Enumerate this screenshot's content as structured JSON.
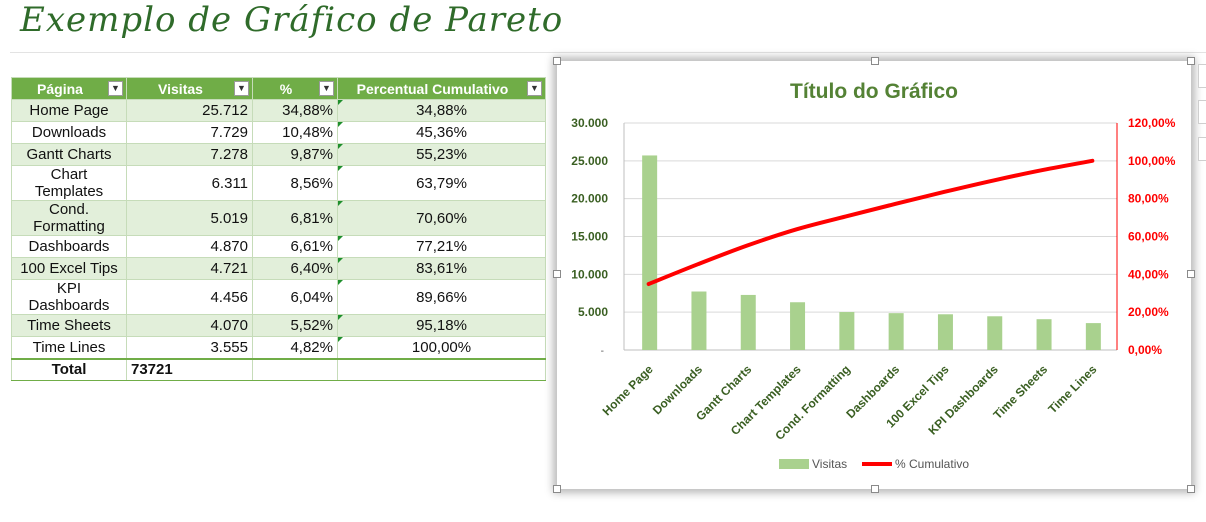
{
  "sheet": {
    "title": "Exemplo de Gráfico de Pareto"
  },
  "table": {
    "headers": [
      "Página",
      "Visitas",
      "%",
      "Percentual Cumulativo"
    ],
    "rows": [
      {
        "page": "Home Page",
        "visits": "25.712",
        "pct": "34,88%",
        "cum": "34,88%"
      },
      {
        "page": "Downloads",
        "visits": "7.729",
        "pct": "10,48%",
        "cum": "45,36%"
      },
      {
        "page": "Gantt Charts",
        "visits": "7.278",
        "pct": "9,87%",
        "cum": "55,23%"
      },
      {
        "page": "Chart Templates",
        "visits": "6.311",
        "pct": "8,56%",
        "cum": "63,79%"
      },
      {
        "page": "Cond. Formatting",
        "visits": "5.019",
        "pct": "6,81%",
        "cum": "70,60%"
      },
      {
        "page": "Dashboards",
        "visits": "4.870",
        "pct": "6,61%",
        "cum": "77,21%"
      },
      {
        "page": "100 Excel Tips",
        "visits": "4.721",
        "pct": "6,40%",
        "cum": "83,61%"
      },
      {
        "page": "KPI Dashboards",
        "visits": "4.456",
        "pct": "6,04%",
        "cum": "89,66%"
      },
      {
        "page": "Time Sheets",
        "visits": "4.070",
        "pct": "5,52%",
        "cum": "95,18%"
      },
      {
        "page": "Time Lines",
        "visits": "3.555",
        "pct": "4,82%",
        "cum": "100,00%"
      }
    ],
    "total_label": "Total",
    "total_value": "73721"
  },
  "colors": {
    "bar": "#a9d18e",
    "line": "#ff0000",
    "header": "#70ad47",
    "title": "#548235",
    "axis_label": "#3a5f22"
  },
  "chart_data": {
    "type": "bar",
    "title": "Título do Gráfico",
    "categories": [
      "Home Page",
      "Downloads",
      "Gantt Charts",
      "Chart Templates",
      "Cond. Formatting",
      "Dashboards",
      "100 Excel Tips",
      "KPI Dashboards",
      "Time Sheets",
      "Time Lines"
    ],
    "series": [
      {
        "name": "Visitas",
        "type": "bar",
        "axis": "left",
        "values": [
          25712,
          7729,
          7278,
          6311,
          5019,
          4870,
          4721,
          4456,
          4070,
          3555
        ]
      },
      {
        "name": "% Cumulativo",
        "type": "line",
        "axis": "right",
        "values": [
          34.88,
          45.36,
          55.23,
          63.79,
          70.6,
          77.21,
          83.61,
          89.66,
          95.18,
          100.0
        ]
      }
    ],
    "ylim": [
      0,
      30000
    ],
    "y_ticks": [
      "5.000",
      "10.000",
      "15.000",
      "20.000",
      "25.000",
      "30.000"
    ],
    "y2lim": [
      0,
      120
    ],
    "y2_ticks": [
      "0,00%",
      "20,00%",
      "40,00%",
      "60,00%",
      "80,00%",
      "100,00%",
      "120,00%"
    ],
    "grid": true,
    "legend": "bottom"
  }
}
